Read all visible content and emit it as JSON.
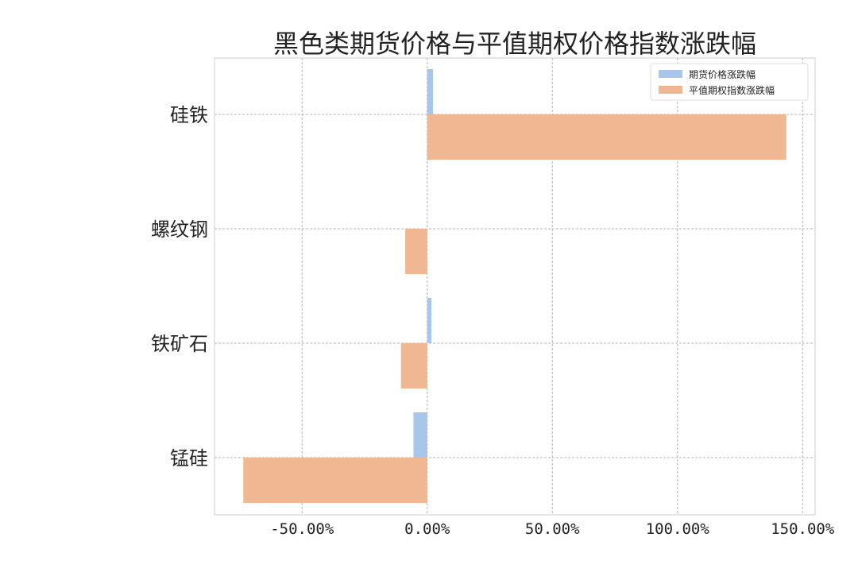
{
  "chart_data": {
    "type": "bar",
    "orientation": "horizontal",
    "title": "黑色类期货价格与平值期权价格指数涨跌幅",
    "categories": [
      "硅铁",
      "螺纹钢",
      "铁矿石",
      "锰硅"
    ],
    "series": [
      {
        "name": "期货价格涨跌幅",
        "color": "#a8c6ea",
        "values": [
          2.3,
          0.0,
          1.7,
          -5.5
        ]
      },
      {
        "name": "平值期权指数涨跌幅",
        "color": "#f0b892",
        "values": [
          143.5,
          -8.8,
          -10.5,
          -73.5
        ]
      }
    ],
    "xlim": [
      -85,
      155
    ],
    "xticks": [
      -50,
      0,
      50,
      100,
      150
    ],
    "xtick_labels": [
      "-50.00%",
      "0.00%",
      "50.00%",
      "100.00%",
      "150.00%"
    ],
    "grid": true,
    "legend_position": "top-right"
  }
}
